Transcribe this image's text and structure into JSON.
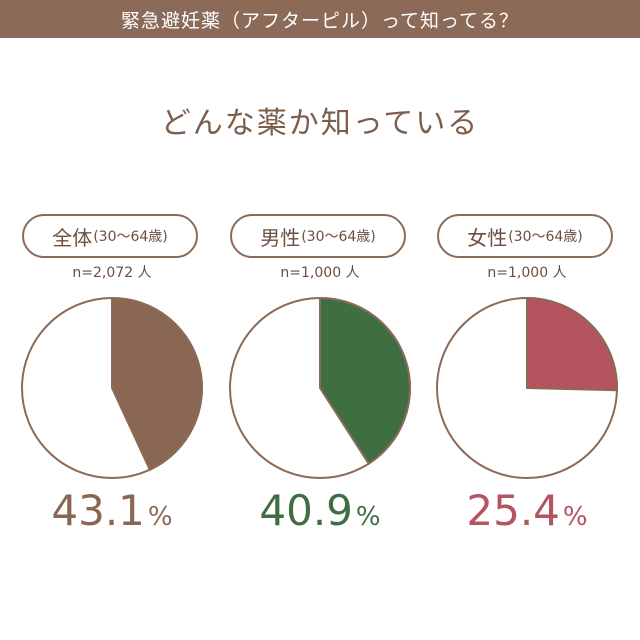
{
  "header": {
    "title": "緊急避妊薬（アフターピル）って知ってる？"
  },
  "subtitle": "どんな薬か知っている",
  "colors": {
    "header_bg": "#8b6a57",
    "outline": "#8b6a57",
    "all": "#8a6753",
    "male": "#3f6e43",
    "female": "#b45461"
  },
  "chart_data": [
    {
      "type": "pie",
      "group": "全体",
      "range": "(30～64歳)",
      "n": "n=2,072 人",
      "value": 43.1,
      "value_label": "43.1",
      "unit": "%",
      "color": "#8a6753"
    },
    {
      "type": "pie",
      "group": "男性",
      "range": "(30～64歳)",
      "n": "n=1,000 人",
      "value": 40.9,
      "value_label": "40.9",
      "unit": "%",
      "color": "#3f6e43"
    },
    {
      "type": "pie",
      "group": "女性",
      "range": "(30～64歳)",
      "n": "n=1,000 人",
      "value": 25.4,
      "value_label": "25.4",
      "unit": "%",
      "color": "#b45461"
    }
  ]
}
